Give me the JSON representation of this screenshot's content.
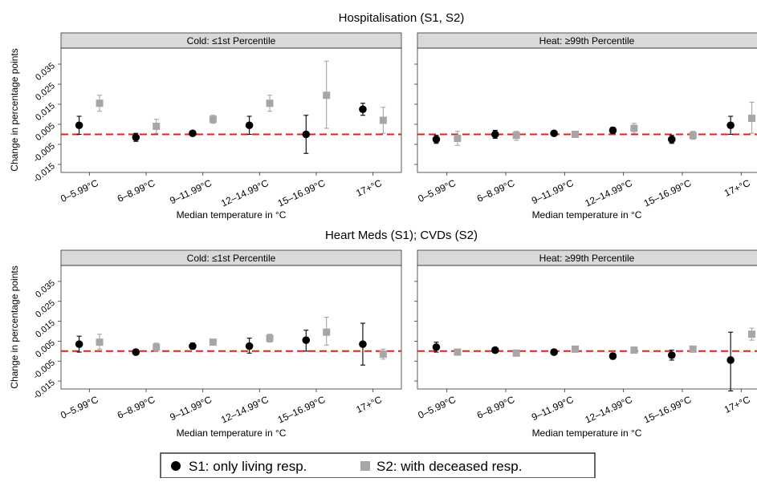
{
  "figure": {
    "ylabel": "Change in percentage points",
    "xlabel": "Median temperature in °C",
    "categories": [
      "0–5.99°C",
      "6–8.99°C",
      "9–11.99°C",
      "12–14.99°C",
      "15–16.99°C",
      "17+°C"
    ],
    "y_ticks": [
      "-0.015",
      "-0.005",
      "0.005",
      "0.015",
      "0.025",
      "0.035"
    ],
    "legend": {
      "s1": "S1: only living resp.",
      "s2": "S2: with deceased resp."
    }
  },
  "colors": {
    "s1": "#000000",
    "s2": "#a6a6a6",
    "reference_line": "#e0201b",
    "strip_bg": "#d9d9d9"
  },
  "chart_data": [
    {
      "type": "scatter",
      "title": "Hospitalisation (S1, S2)",
      "panel": "Cold: ≤1st Percentile",
      "xlabel": "Median temperature in °C",
      "ylabel": "Change in percentage points",
      "ylim": [
        -0.019,
        0.043
      ],
      "reference_line": 0,
      "categories": [
        "0–5.99°C",
        "6–8.99°C",
        "9–11.99°C",
        "12–14.99°C",
        "15–16.99°C",
        "17+°C"
      ],
      "series": [
        {
          "name": "S1: only living resp.",
          "values": [
            0.0045,
            -0.0015,
            0.0005,
            0.0045,
            0.0,
            0.0125
          ],
          "lower": [
            0.0,
            -0.0035,
            -0.0005,
            0.0,
            -0.0095,
            0.0095
          ],
          "upper": [
            0.009,
            0.0005,
            0.0015,
            0.009,
            0.0095,
            0.0155
          ]
        },
        {
          "name": "S2: with deceased resp.",
          "values": [
            0.0155,
            0.004,
            0.0075,
            0.0155,
            0.0195,
            0.007
          ],
          "lower": [
            0.0115,
            0.0005,
            0.0055,
            0.0115,
            0.003,
            0.0005
          ],
          "upper": [
            0.0195,
            0.0075,
            0.0095,
            0.0195,
            0.0365,
            0.0135
          ]
        }
      ]
    },
    {
      "type": "scatter",
      "title": "Hospitalisation (S1, S2)",
      "panel": "Heat: ≥99th Percentile",
      "xlabel": "Median temperature in °C",
      "ylabel": "Change in percentage points",
      "ylim": [
        -0.019,
        0.043
      ],
      "reference_line": 0,
      "categories": [
        "0–5.99°C",
        "6–8.99°C",
        "9–11.99°C",
        "12–14.99°C",
        "15–16.99°C",
        "17+°C"
      ],
      "series": [
        {
          "name": "S1: only living resp.",
          "values": [
            -0.0025,
            0.0,
            0.0005,
            0.002,
            -0.0025,
            0.0045
          ],
          "lower": [
            -0.0045,
            -0.002,
            -0.0005,
            0.0005,
            -0.0045,
            0.0
          ],
          "upper": [
            -0.0005,
            0.002,
            0.0015,
            0.0035,
            -0.0005,
            0.009
          ]
        },
        {
          "name": "S2: with deceased resp.",
          "values": [
            -0.002,
            -0.0005,
            0.0,
            0.003,
            -0.0005,
            0.008
          ],
          "lower": [
            -0.0055,
            -0.003,
            -0.0005,
            0.0005,
            -0.0025,
            0.0005
          ],
          "upper": [
            0.0015,
            0.0015,
            0.0005,
            0.0055,
            0.0015,
            0.016
          ]
        }
      ]
    },
    {
      "type": "scatter",
      "title": "Heart Meds (S1); CVDs (S2)",
      "panel": "Cold: ≤1st Percentile",
      "xlabel": "Median temperature in °C",
      "ylabel": "Change in percentage points",
      "ylim": [
        -0.019,
        0.043
      ],
      "reference_line": 0,
      "categories": [
        "0–5.99°C",
        "6–8.99°C",
        "9–11.99°C",
        "12–14.99°C",
        "15–16.99°C",
        "17+°C"
      ],
      "series": [
        {
          "name": "S1: only living resp.",
          "values": [
            0.0035,
            -0.0005,
            0.0025,
            0.0025,
            0.0055,
            0.0035
          ],
          "lower": [
            -0.0005,
            -0.0015,
            0.001,
            -0.001,
            0.0,
            -0.007
          ],
          "upper": [
            0.0075,
            0.0005,
            0.004,
            0.0065,
            0.0105,
            0.014
          ]
        },
        {
          "name": "S2: with deceased resp.",
          "values": [
            0.0045,
            0.002,
            0.0045,
            0.0065,
            0.0095,
            -0.0015
          ],
          "lower": [
            0.001,
            0.0,
            0.0035,
            0.0045,
            0.003,
            -0.004
          ],
          "upper": [
            0.0085,
            0.004,
            0.0055,
            0.0085,
            0.017,
            0.001
          ]
        }
      ]
    },
    {
      "type": "scatter",
      "title": "Heart Meds (S1); CVDs (S2)",
      "panel": "Heat: ≥99th Percentile",
      "xlabel": "Median temperature in °C",
      "ylabel": "Change in percentage points",
      "ylim": [
        -0.019,
        0.043
      ],
      "reference_line": 0,
      "categories": [
        "0–5.99°C",
        "6–8.99°C",
        "9–11.99°C",
        "12–14.99°C",
        "15–16.99°C",
        "17+°C"
      ],
      "series": [
        {
          "name": "S1: only living resp.",
          "values": [
            0.002,
            0.0005,
            -0.0005,
            -0.0025,
            -0.002,
            -0.0045
          ],
          "lower": [
            -0.0005,
            -0.0005,
            -0.0015,
            -0.004,
            -0.0045,
            -0.02
          ],
          "upper": [
            0.0045,
            0.0015,
            0.0005,
            -0.001,
            0.0005,
            0.0095
          ]
        },
        {
          "name": "S2: with deceased resp.",
          "values": [
            -0.0005,
            -0.001,
            0.001,
            0.0005,
            0.001,
            0.0085
          ],
          "lower": [
            -0.0015,
            -0.0025,
            0.0,
            -0.0005,
            -0.0005,
            0.0055
          ],
          "upper": [
            0.0005,
            0.0005,
            0.002,
            0.0015,
            0.0025,
            0.0115
          ]
        }
      ]
    }
  ]
}
